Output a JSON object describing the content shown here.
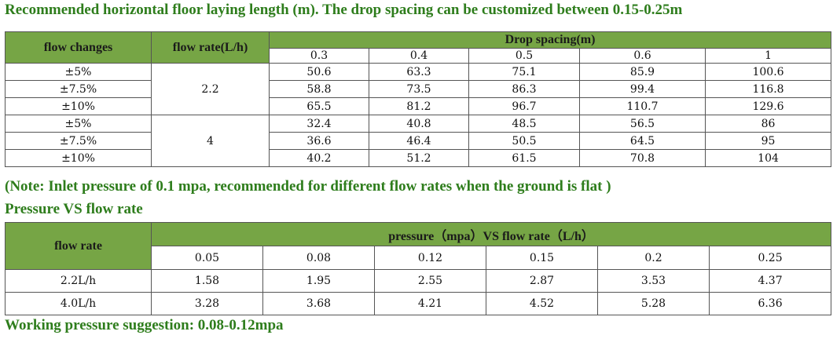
{
  "title": "Recommended horizontal floor laying length (m). The drop spacing can be customized between 0.15-0.25m",
  "table1": {
    "col_flow_changes": "flow changes",
    "col_flow_rate": "flow rate(L/h)",
    "col_drop_spacing": "Drop spacing(m)",
    "spacings": [
      "0.3",
      "0.4",
      "0.5",
      "0.6",
      "1"
    ],
    "groups": [
      {
        "rate": "2.2",
        "rows": [
          {
            "change": "±5%",
            "values": [
              "50.6",
              "63.3",
              "75.1",
              "85.9",
              "100.6"
            ]
          },
          {
            "change": "±7.5%",
            "values": [
              "58.8",
              "73.5",
              "86.3",
              "99.4",
              "116.8"
            ]
          },
          {
            "change": "±10%",
            "values": [
              "65.5",
              "81.2",
              "96.7",
              "110.7",
              "129.6"
            ]
          }
        ]
      },
      {
        "rate": "4",
        "rows": [
          {
            "change": "±5%",
            "values": [
              "32.4",
              "40.8",
              "48.5",
              "56.5",
              "86"
            ]
          },
          {
            "change": "±7.5%",
            "values": [
              "36.6",
              "46.4",
              "50.5",
              "64.5",
              "95"
            ]
          },
          {
            "change": "±10%",
            "values": [
              "40.2",
              "51.2",
              "61.5",
              "70.8",
              "104"
            ]
          }
        ]
      }
    ]
  },
  "note": "(Note: Inlet pressure of 0.1 mpa, recommended for different flow rates when the ground is flat )",
  "pressure_title": "Pressure VS flow rate",
  "table2": {
    "col_flow_rate": "flow rate",
    "col_pressure": "pressure（mpa）VS flow rate（L/h）",
    "pressures": [
      "0.05",
      "0.08",
      "0.12",
      "0.15",
      "0.2",
      "0.25"
    ],
    "rows": [
      {
        "rate": "2.2L/h",
        "values": [
          "1.58",
          "1.95",
          "2.55",
          "2.87",
          "3.53",
          "4.37"
        ]
      },
      {
        "rate": "4.0L/h",
        "values": [
          "3.28",
          "3.68",
          "4.21",
          "4.52",
          "5.28",
          "6.36"
        ]
      }
    ]
  },
  "working_pressure": "Working pressure suggestion: 0.08-0.12mpa",
  "colors": {
    "header_green": "#76a545",
    "heading_green": "#2e7d1c",
    "border": "#555555"
  }
}
